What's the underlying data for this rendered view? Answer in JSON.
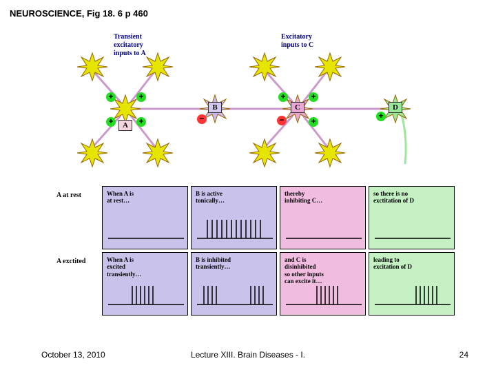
{
  "title": "NEUROSCIENCE, Fig 18. 6 p 460",
  "footer": {
    "date": "October 13, 2010",
    "center": "Lecture XIII. Brain Diseases - I.",
    "page": "24"
  },
  "inputLabels": {
    "a": "Transient\nexcitatory\ninputs to A",
    "c": "Excitatory\ninputs to C"
  },
  "cells": {
    "a": {
      "label": "A",
      "box_bg": "#f5d6e0",
      "body_color": "#e5e500"
    },
    "b": {
      "label": "B",
      "box_bg": "#d4c9f0",
      "body_color": "#c9b9f0"
    },
    "c": {
      "label": "C",
      "box_bg": "#e9a7d4",
      "body_color": "#e9a7d4"
    },
    "d": {
      "label": "D",
      "box_bg": "#9ae89a",
      "body_color": "#9ae89a"
    }
  },
  "inputNeuronColor": "#e5e500",
  "rowLabels": {
    "rest": "A at rest",
    "excited": "A exctited"
  },
  "panels": {
    "rest": [
      {
        "text": "When A is\nat rest…",
        "bg": "#c9c2eb",
        "spikes": "flat"
      },
      {
        "text": "B is active\ntonically…",
        "bg": "#c9c2eb",
        "spikes": "dense"
      },
      {
        "text": "thereby\ninhibiting C…",
        "bg": "#f0bde0",
        "spikes": "flat"
      },
      {
        "text": "so there is no\nexctitation of D",
        "bg": "#c4f0c4",
        "spikes": "flat"
      }
    ],
    "excited": [
      {
        "text": "When A is\nexcited\ntransiently…",
        "bg": "#c9c2eb",
        "spikes": "burst"
      },
      {
        "text": "B is  inhibited\ntransiently…",
        "bg": "#c9c2eb",
        "spikes": "gap"
      },
      {
        "text": "and C is\ndisinhibited\nso other inputs\ncan excite it…",
        "bg": "#f0bde0",
        "spikes": "burst-mid"
      },
      {
        "text": "leading to\nexcitation of D",
        "bg": "#c4f0c4",
        "spikes": "burst-right"
      }
    ]
  },
  "axon_color": "#cc99cc",
  "spike_color": "#000000"
}
